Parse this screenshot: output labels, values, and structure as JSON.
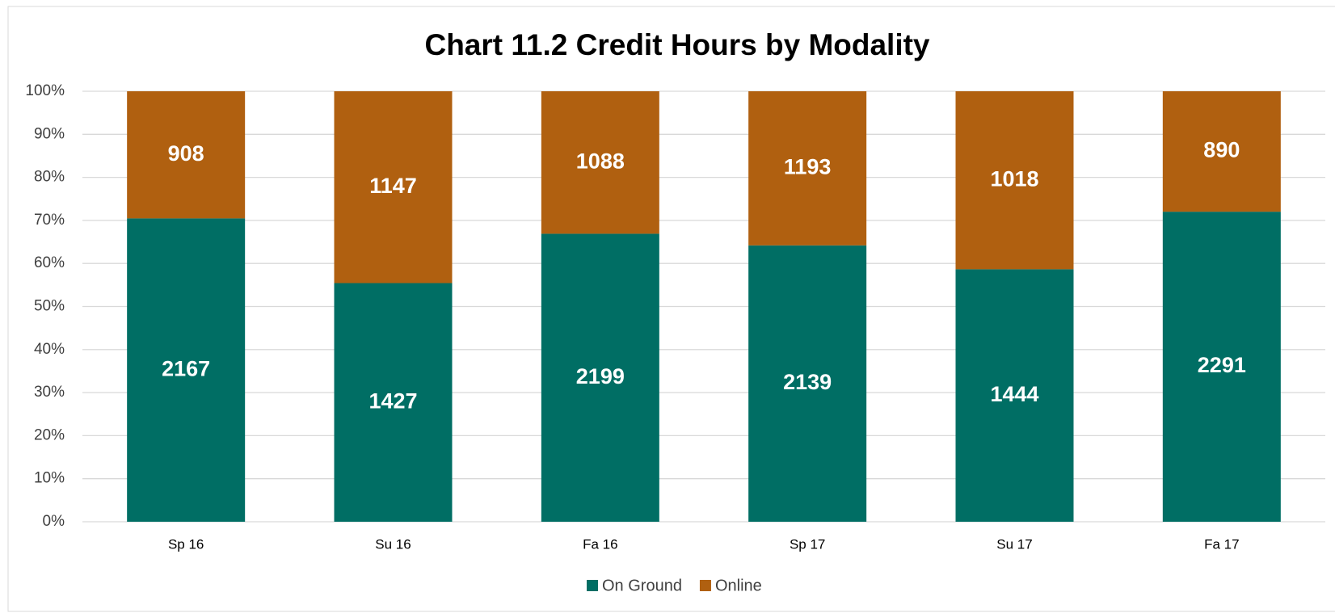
{
  "chart_data": {
    "type": "bar",
    "stacking": "percent",
    "title": "Chart 11.2 Credit Hours by Modality",
    "categories": [
      "Sp 16",
      "Su 16",
      "Fa 16",
      "Sp 17",
      "Su 17",
      "Fa 17"
    ],
    "series": [
      {
        "name": "On Ground",
        "color": "#006e64",
        "values": [
          2167,
          1427,
          2199,
          2139,
          1444,
          2291
        ]
      },
      {
        "name": "Online",
        "color": "#b06010",
        "values": [
          908,
          1147,
          1088,
          1193,
          1018,
          890
        ]
      }
    ],
    "ylim": [
      0,
      100
    ],
    "yticks": [
      {
        "value": 0,
        "label": "0%"
      },
      {
        "value": 10,
        "label": "10%"
      },
      {
        "value": 20,
        "label": "20%"
      },
      {
        "value": 30,
        "label": "30%"
      },
      {
        "value": 40,
        "label": "40%"
      },
      {
        "value": 50,
        "label": "50%"
      },
      {
        "value": 60,
        "label": "60%"
      },
      {
        "value": 70,
        "label": "70%"
      },
      {
        "value": 80,
        "label": "80%"
      },
      {
        "value": 90,
        "label": "90%"
      },
      {
        "value": 100,
        "label": "100%"
      }
    ],
    "grid": true,
    "legend": "bottom"
  }
}
